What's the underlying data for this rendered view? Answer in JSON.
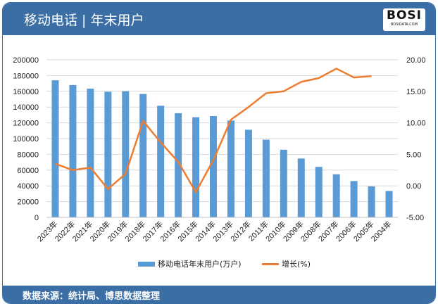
{
  "header": {
    "title": "移动电话 | 年末用户",
    "logo_text": "BOSI",
    "logo_sub": "BOSIDATA.COM"
  },
  "footer": {
    "source": "数据来源：统计局、博思数据整理"
  },
  "chart_data": {
    "type": "bar+line",
    "categories": [
      "2023年",
      "2022年",
      "2021年",
      "2020年",
      "2019年",
      "2018年",
      "2017年",
      "2016年",
      "2015年",
      "2014年",
      "2013年",
      "2012年",
      "2011年",
      "2010年",
      "2009年",
      "2008年",
      "2007年",
      "2006年",
      "2005年",
      "2004年"
    ],
    "series": [
      {
        "name": "移动电话年末用户(万户)",
        "type": "bar",
        "axis": "left",
        "color": "#5b9bd5",
        "values": [
          174000,
          168000,
          163400,
          159400,
          160100,
          156600,
          141700,
          132200,
          127100,
          128600,
          122900,
          111200,
          98600,
          85900,
          74700,
          64100,
          54700,
          46100,
          39300,
          33500
        ]
      },
      {
        "name": "增长(%)",
        "type": "line",
        "axis": "right",
        "color": "#ed7d31",
        "values": [
          3.5,
          2.5,
          2.9,
          -0.5,
          1.9,
          10.3,
          6.9,
          3.8,
          -1.0,
          4.1,
          10.5,
          12.5,
          14.7,
          15.0,
          16.5,
          17.1,
          18.6,
          17.2,
          17.4,
          null
        ]
      }
    ],
    "left_axis": {
      "min": 0,
      "max": 200000,
      "ticks": [
        "0",
        "20000",
        "40000",
        "60000",
        "80000",
        "100000",
        "120000",
        "140000",
        "160000",
        "180000",
        "200000"
      ]
    },
    "right_axis": {
      "min": -5,
      "max": 20,
      "ticks": [
        "-5.00",
        "0.00",
        "5.00",
        "10.00",
        "15.00",
        "20.00"
      ]
    },
    "grid": true,
    "legend": "bottom"
  }
}
